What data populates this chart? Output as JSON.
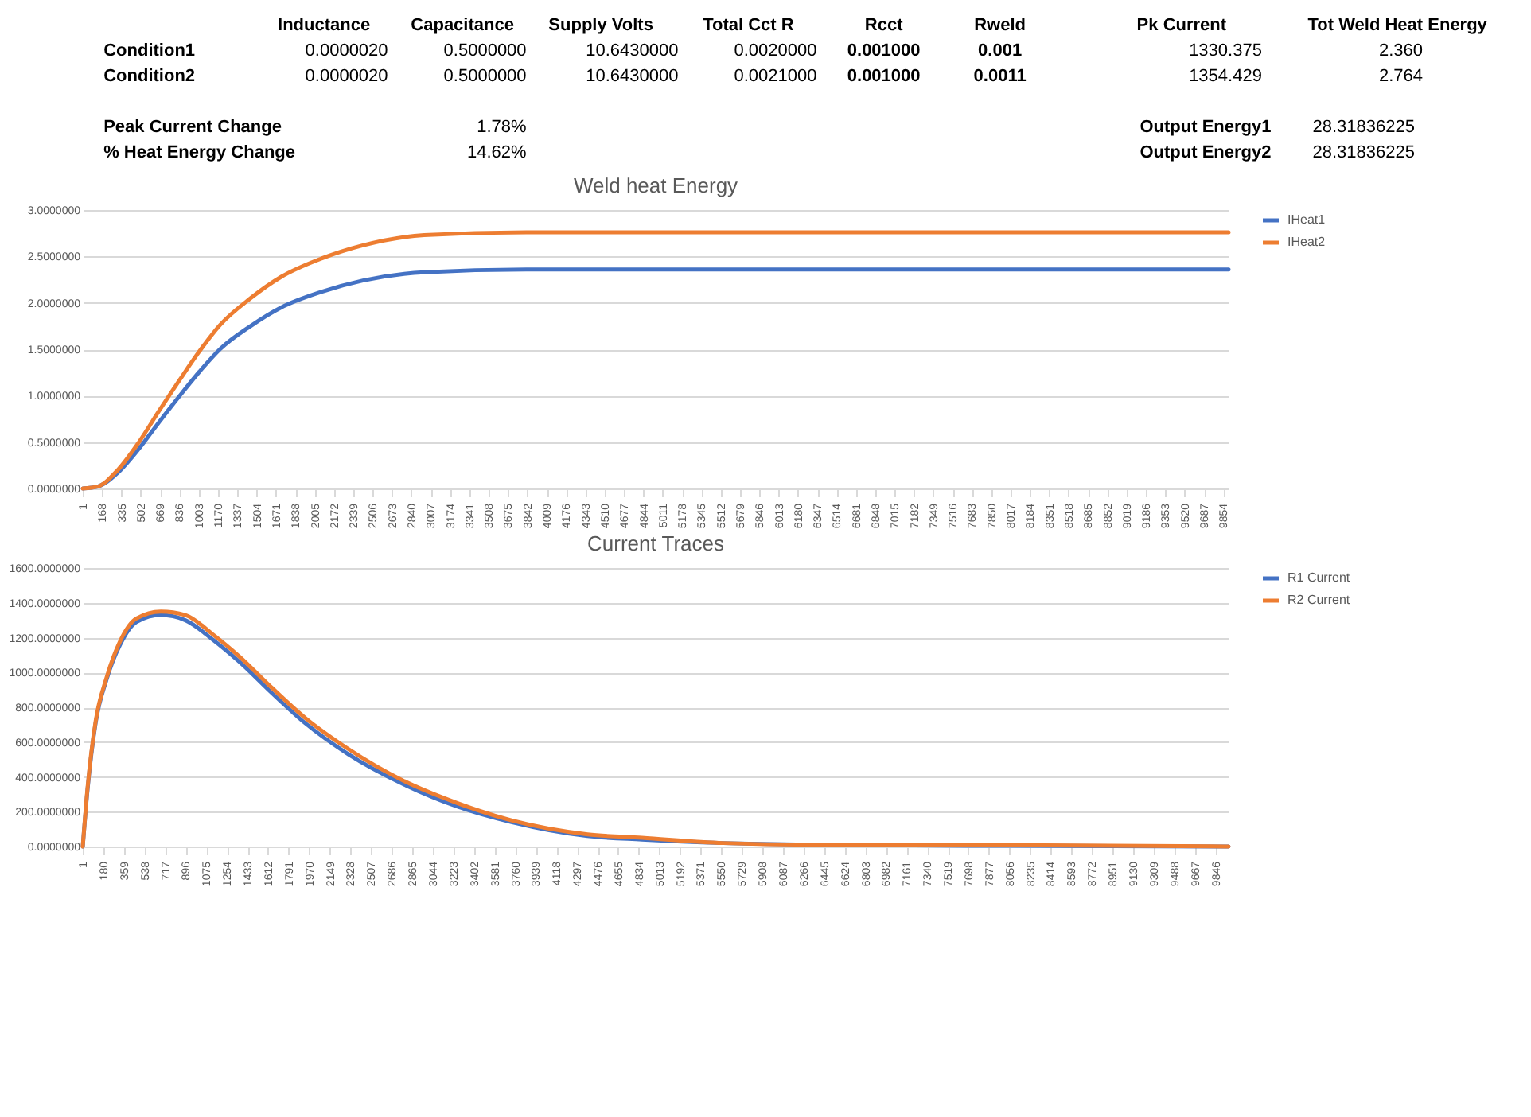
{
  "chart_data": [
    {
      "type": "other",
      "annotations": [
        "Inductance",
        "Capacitance",
        "Supply Volts",
        "Total Cct R",
        "Rcct",
        "Rweld",
        "Pk Current",
        "Tot Weld Heat Energy",
        "Condition1",
        "0.0000020",
        "0.5000000",
        "10.6430000",
        "0.0020000",
        "0.001000",
        "0.001",
        "1330.375",
        "2.360",
        "Condition2",
        "0.0000020",
        "0.5000000",
        "10.6430000",
        "0.0021000",
        "0.001000",
        "0.0011",
        "1354.429",
        "2.764",
        "Peak Current Change",
        "1.78%",
        "Output Energy1",
        "28.31836225",
        "% Heat Energy Change",
        "14.62%",
        "Output Energy2",
        "28.31836225"
      ]
    },
    {
      "type": "line",
      "title": "Weld heat Energy",
      "x": [
        1,
        128,
        304,
        481,
        657,
        833,
        1010,
        1186,
        1451,
        1715,
        2068,
        2421,
        2950,
        3832,
        9900
      ],
      "series": [
        {
          "name": "IHeat1",
          "color": "#4472c4",
          "values": [
            0,
            0.02,
            0.17,
            0.42,
            0.71,
            0.99,
            1.26,
            1.5,
            1.75,
            1.95,
            2.12,
            2.24,
            2.33,
            2.36,
            2.36
          ]
        },
        {
          "name": "IHeat2",
          "color": "#ed7d31",
          "values": [
            0,
            0.02,
            0.2,
            0.49,
            0.83,
            1.16,
            1.48,
            1.76,
            2.05,
            2.28,
            2.48,
            2.62,
            2.73,
            2.76,
            2.76
          ]
        }
      ],
      "xlim": [
        1,
        9900
      ],
      "xticks": [
        1,
        168,
        335,
        502,
        669,
        836,
        1003,
        1170,
        1337,
        1504,
        1671,
        1838,
        2005,
        2172,
        2339,
        2506,
        2673,
        2840,
        3007,
        3174,
        3341,
        3508,
        3675,
        3842,
        4009,
        4176,
        4343,
        4510,
        4677,
        4844,
        5011,
        5178,
        5345,
        5512,
        5679,
        5846,
        6013,
        6180,
        6347,
        6514,
        6681,
        6848,
        7015,
        7182,
        7349,
        7516,
        7683,
        7850,
        8017,
        8184,
        8351,
        8518,
        8685,
        8852,
        9019,
        9186,
        9353,
        9520,
        9687,
        9854
      ],
      "ylim": [
        0,
        3
      ],
      "yticks": [
        {
          "value": 0,
          "label": "0.0000000"
        },
        {
          "value": 0.5,
          "label": "0.5000000"
        },
        {
          "value": 1,
          "label": "1.0000000"
        },
        {
          "value": 1.5,
          "label": "1.5000000"
        },
        {
          "value": 2,
          "label": "2.0000000"
        },
        {
          "value": 2.5,
          "label": "2.5000000"
        },
        {
          "value": 3,
          "label": "3.0000000"
        }
      ],
      "grid": "y",
      "legend": "right",
      "marker": "none",
      "line_style": "solid"
    },
    {
      "type": "line",
      "title": "Current Traces",
      "x": [
        1,
        43,
        113,
        208,
        326,
        467,
        680,
        893,
        1129,
        1365,
        1648,
        1932,
        2310,
        2782,
        3255,
        3727,
        4388,
        4861,
        5570,
        6514,
        7694,
        9960
      ],
      "series": [
        {
          "name": "R1 Current",
          "color": "#4472c4",
          "values": [
            0,
            330,
            710,
            960,
            1160,
            1290,
            1330,
            1300,
            1190,
            1060,
            880,
            710,
            530,
            360,
            230,
            140,
            60,
            40,
            20,
            10,
            5,
            0
          ]
        },
        {
          "name": "R2 Current",
          "color": "#ed7d31",
          "values": [
            0,
            340,
            720,
            970,
            1180,
            1310,
            1350,
            1330,
            1220,
            1090,
            910,
            740,
            560,
            380,
            250,
            150,
            70,
            50,
            20,
            10,
            10,
            0
          ]
        }
      ],
      "xlim": [
        1,
        9960
      ],
      "xticks": [
        1,
        180,
        359,
        538,
        717,
        896,
        1075,
        1254,
        1433,
        1612,
        1791,
        1970,
        2149,
        2328,
        2507,
        2686,
        2865,
        3044,
        3223,
        3402,
        3581,
        3760,
        3939,
        4118,
        4297,
        4476,
        4655,
        4834,
        5013,
        5192,
        5371,
        5550,
        5729,
        5908,
        6087,
        6266,
        6445,
        6624,
        6803,
        6982,
        7161,
        7340,
        7519,
        7698,
        7877,
        8056,
        8235,
        8414,
        8593,
        8772,
        8951,
        9130,
        9309,
        9488,
        9667,
        9846
      ],
      "ylim": [
        0,
        1600
      ],
      "yticks": [
        {
          "value": 0,
          "label": "0.0000000"
        },
        {
          "value": 200,
          "label": "200.0000000"
        },
        {
          "value": 400,
          "label": "400.0000000"
        },
        {
          "value": 600,
          "label": "600.0000000"
        },
        {
          "value": 800,
          "label": "800.0000000"
        },
        {
          "value": 1000,
          "label": "1000.0000000"
        },
        {
          "value": 1200,
          "label": "1200.0000000"
        },
        {
          "value": 1400,
          "label": "1400.0000000"
        },
        {
          "value": 1600,
          "label": "1600.0000000"
        }
      ],
      "grid": "y",
      "legend": "right",
      "marker": "none",
      "line_style": "solid"
    }
  ]
}
